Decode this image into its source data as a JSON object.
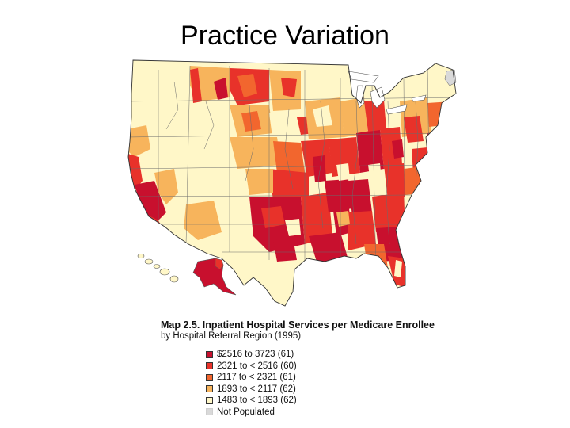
{
  "slide": {
    "title": "Practice Variation"
  },
  "map": {
    "title": "Map 2.5.  Inpatient Hospital Services per Medicare Enrollee",
    "subtitle": "by Hospital Referral Region (1995)",
    "legend": [
      {
        "label": "$2516 to   3723 (61)",
        "color": "#c8102e"
      },
      {
        "label": "2321 to < 2516 (60)",
        "color": "#e8322a"
      },
      {
        "label": "2117 to < 2321 (61)",
        "color": "#f2662e"
      },
      {
        "label": "1893 to < 2117 (62)",
        "color": "#f7b45c"
      },
      {
        "label": "1483 to < 1893 (62)",
        "color": "#fff7c8"
      },
      {
        "label": "Not Populated",
        "color": "#d9d9d9"
      }
    ],
    "colors": {
      "border": "#555555",
      "ocean": "#ffffff"
    }
  }
}
